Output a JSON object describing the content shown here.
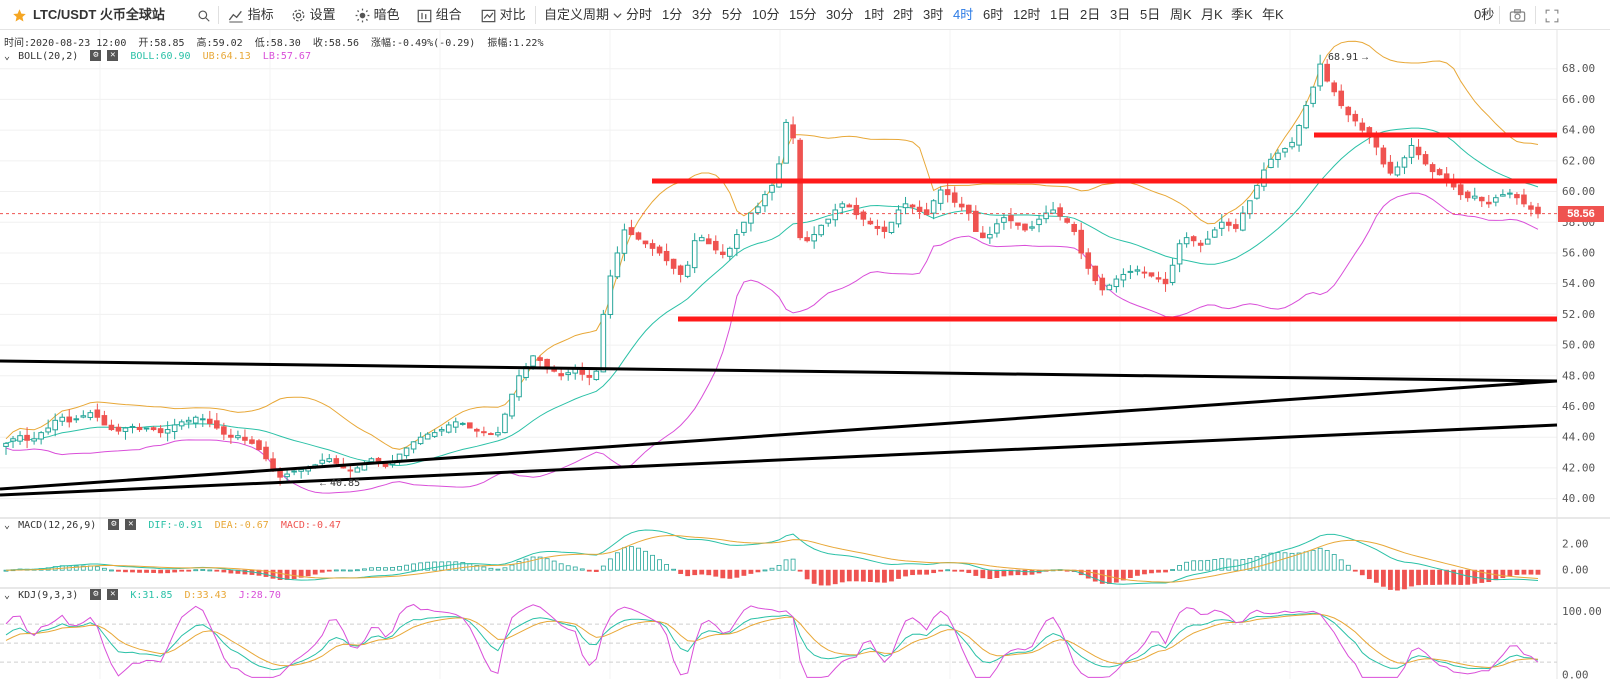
{
  "toolbar": {
    "symbol": "LTC/USDT 火币全球站",
    "buttons": [
      "指标",
      "设置",
      "暗色",
      "组合",
      "对比"
    ],
    "custom_period": "自定义周期",
    "periods": [
      "分时",
      "1分",
      "3分",
      "5分",
      "10分",
      "15分",
      "30分",
      "1时",
      "2时",
      "3时",
      "4时",
      "6时",
      "12时",
      "1日",
      "2日",
      "3日",
      "5日",
      "周K",
      "月K",
      "季K",
      "年K"
    ],
    "active_period": "4时",
    "countdown": "0秒"
  },
  "info": {
    "time": "时间:2020-08-23 12:00",
    "open": "开:58.85",
    "high": "高:59.02",
    "low": "低:58.30",
    "close": "收:58.56",
    "change": "涨幅:-0.49%(-0.29)",
    "amplitude": "振幅:1.22%"
  },
  "boll": {
    "label": "BOLL(20,2)",
    "boll": "BOLL:60.90",
    "ub": "UB:64.13",
    "lb": "LB:57.67"
  },
  "macd": {
    "label": "MACD(12,26,9)",
    "dif": "DIF:-0.91",
    "dea": "DEA:-0.67",
    "macd": "MACD:-0.47"
  },
  "kdj": {
    "label": "KDJ(9,3,3)",
    "k": "K:31.85",
    "d": "D:33.43",
    "j": "J:28.70"
  },
  "last_price": "58.56",
  "high_marker": "68.91",
  "low_marker": "40.85",
  "colors": {
    "up": "#26a69a",
    "down": "#ef5350",
    "boll": "#2bc1a7",
    "ub": "#e8a838",
    "lb": "#d94fd9",
    "trend_red": "#ff1a1a",
    "trend_black": "#000000",
    "accent": "#2c7be5"
  },
  "chart_data": [
    {
      "type": "candlestick",
      "title": "LTC/USDT 4H",
      "ylim": [
        39.0,
        70.0
      ],
      "y_ticks": [
        "40.00",
        "42.00",
        "44.00",
        "46.00",
        "48.00",
        "50.00",
        "52.00",
        "54.00",
        "56.00",
        "58.00",
        "60.00",
        "62.00",
        "64.00",
        "66.00",
        "68.00"
      ],
      "close_series": [
        43.6,
        43.9,
        44.1,
        43.8,
        43.9,
        44.3,
        44.6,
        45.1,
        45.3,
        45.0,
        45.2,
        45.4,
        45.6,
        45.3,
        44.8,
        44.5,
        44.4,
        44.6,
        44.7,
        44.5,
        44.6,
        44.5,
        44.3,
        44.5,
        44.8,
        45.0,
        45.1,
        45.3,
        45.2,
        44.9,
        44.6,
        44.2,
        44.0,
        44.1,
        43.8,
        43.6,
        43.2,
        42.6,
        41.8,
        41.4,
        41.6,
        41.8,
        41.9,
        42.0,
        42.2,
        42.5,
        42.6,
        42.3,
        42.0,
        41.8,
        42.0,
        42.3,
        42.6,
        42.4,
        42.1,
        42.4,
        42.9,
        43.3,
        43.7,
        44.0,
        44.2,
        44.3,
        44.5,
        44.8,
        45.0,
        44.9,
        44.6,
        44.4,
        44.3,
        44.2,
        44.3,
        45.5,
        46.8,
        48.0,
        48.6,
        49.3,
        49.0,
        48.6,
        48.3,
        48.0,
        48.2,
        48.5,
        48.1,
        47.9,
        48.3,
        52.0,
        54.5,
        56.0,
        57.5,
        57.2,
        56.9,
        56.6,
        56.3,
        56.0,
        55.5,
        55.0,
        54.6,
        55.2,
        56.8,
        57.0,
        56.6,
        56.2,
        55.9,
        56.3,
        57.2,
        58.0,
        58.6,
        59.0,
        59.8,
        60.4,
        61.8,
        64.5,
        63.5,
        57.0,
        56.8,
        57.2,
        57.8,
        58.2,
        58.8,
        59.2,
        59.0,
        58.5,
        58.2,
        57.9,
        57.6,
        57.4,
        58.0,
        58.8,
        59.2,
        59.0,
        58.7,
        58.5,
        59.4,
        60.1,
        59.8,
        59.3,
        59.0,
        58.6,
        57.4,
        57.0,
        57.2,
        57.9,
        58.3,
        58.1,
        57.8,
        57.5,
        57.7,
        58.2,
        58.6,
        58.8,
        58.4,
        58.0,
        57.4,
        56.0,
        55.0,
        54.2,
        53.6,
        53.9,
        54.3,
        54.6,
        54.8,
        54.9,
        54.7,
        54.5,
        54.3,
        54.0,
        55.2,
        56.6,
        57.0,
        56.8,
        56.5,
        56.9,
        57.5,
        58.0,
        57.8,
        57.6,
        58.6,
        59.4,
        60.4,
        61.4,
        62.1,
        62.5,
        62.8,
        63.2,
        64.3,
        65.6,
        66.8,
        68.3,
        67.2,
        66.5,
        65.6,
        65.0,
        64.6,
        64.0,
        63.6,
        62.9,
        61.8,
        61.2,
        61.6,
        62.2,
        63.0,
        62.4,
        61.8,
        61.3,
        61.1,
        60.8,
        60.3,
        59.8,
        59.6,
        59.7,
        59.4,
        59.2,
        59.6,
        59.8,
        59.9,
        59.6,
        59.2,
        58.85,
        58.56
      ],
      "high": 68.91,
      "low": 40.85,
      "last": 58.56,
      "overlays": [
        "BOLL",
        "UB",
        "LB"
      ]
    },
    {
      "type": "bar",
      "title": "MACD(12,26,9)",
      "ylim": [
        -1.2,
        3.2
      ],
      "y_ticks": [
        "2.00",
        "0.00"
      ]
    },
    {
      "type": "line",
      "title": "KDJ(9,3,3)",
      "ylim": [
        -5,
        115
      ],
      "y_ticks": [
        "100.00",
        "0.00"
      ]
    }
  ]
}
